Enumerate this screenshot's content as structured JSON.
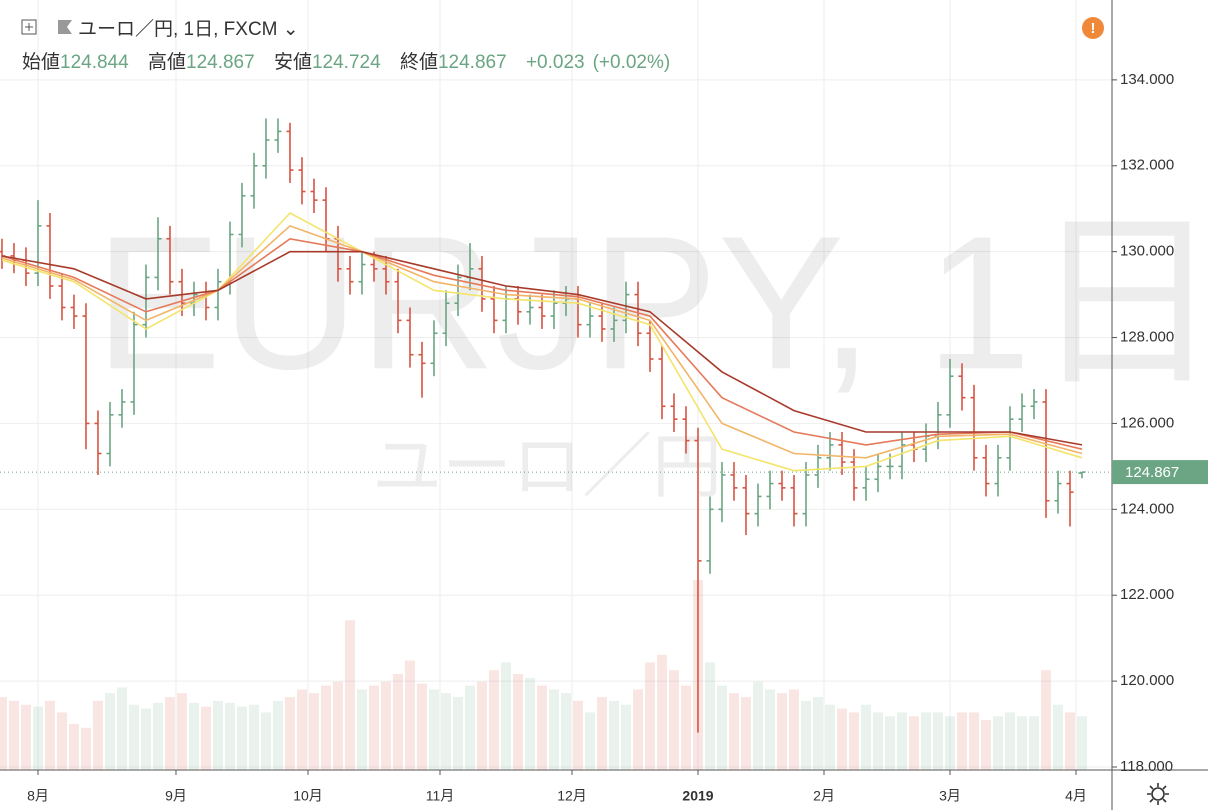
{
  "chart_data": {
    "type": "ohlc",
    "title": "ユーロ／円, 1日, FXCM",
    "labels": {
      "open": "始値",
      "high": "高値",
      "low": "安値",
      "close": "終値"
    },
    "change": "+0.023",
    "change_pct": "(+0.02%)",
    "watermark": "EURJPY, 1日",
    "watermark_sub": "ユーロ／円",
    "xlim": [
      -6.33,
      179
    ],
    "xticks": [
      {
        "value": 0,
        "label": "8月"
      },
      {
        "value": 23,
        "label": "9月"
      },
      {
        "value": 45,
        "label": "10月"
      },
      {
        "value": 67,
        "label": "11月"
      },
      {
        "value": 89,
        "label": "12月"
      },
      {
        "value": 110,
        "label": "2019"
      },
      {
        "value": 131,
        "label": "2月"
      },
      {
        "value": 152,
        "label": "3月"
      },
      {
        "value": 173,
        "label": "4月"
      }
    ],
    "ylim": [
      117.93,
      135.86
    ],
    "yticks": [
      {
        "value": 118,
        "label": "118.000"
      },
      {
        "value": 120,
        "label": "120.000"
      },
      {
        "value": 122,
        "label": "122.000"
      },
      {
        "value": 124,
        "label": "124.000"
      },
      {
        "value": 126,
        "label": "126.000"
      },
      {
        "value": 128,
        "label": "128.000"
      },
      {
        "value": 130,
        "label": "130.000"
      },
      {
        "value": 132,
        "label": "132.000"
      },
      {
        "value": 134,
        "label": "134.000"
      }
    ],
    "grid": true,
    "up_color": "#6ba583",
    "down_color": "#d75442",
    "x": [
      -6,
      -4,
      -2,
      0,
      2,
      4,
      6,
      8,
      10,
      12,
      14,
      16,
      18,
      20,
      22,
      24,
      26,
      28,
      30,
      32,
      34,
      36,
      38,
      40,
      42,
      44,
      46,
      48,
      50,
      52,
      54,
      56,
      58,
      60,
      62,
      64,
      66,
      68,
      70,
      72,
      74,
      76,
      78,
      80,
      82,
      84,
      86,
      88,
      90,
      92,
      94,
      96,
      98,
      100,
      102,
      104,
      106,
      108,
      110,
      112,
      114,
      116,
      118,
      120,
      122,
      124,
      126,
      128,
      130,
      132,
      134,
      136,
      138,
      140,
      142,
      144,
      146,
      148,
      150,
      152,
      154,
      156,
      158,
      160,
      162,
      164,
      166,
      168,
      170,
      172,
      174
    ],
    "open": [
      130.0,
      129.9,
      129.8,
      129.5,
      130.6,
      129.2,
      128.7,
      128.5,
      126.0,
      125.3,
      126.2,
      126.5,
      128.3,
      129.4,
      130.3,
      129.3,
      128.8,
      129.0,
      128.7,
      129.3,
      130.4,
      131.3,
      132.0,
      132.6,
      132.8,
      131.9,
      131.4,
      131.2,
      130.3,
      129.6,
      129.3,
      129.7,
      129.6,
      129.3,
      128.4,
      127.6,
      127.4,
      128.1,
      128.8,
      129.4,
      129.6,
      128.9,
      128.4,
      128.9,
      128.6,
      128.7,
      128.5,
      128.8,
      128.9,
      128.3,
      128.5,
      128.2,
      128.4,
      129.0,
      128.1,
      127.5,
      126.4,
      126.1,
      125.6,
      122.8,
      124.0,
      124.8,
      124.5,
      123.9,
      124.3,
      124.6,
      124.5,
      123.9,
      124.8,
      125.2,
      125.5,
      125.1,
      124.5,
      124.7,
      125.0,
      125.0,
      125.5,
      125.4,
      125.7,
      126.2,
      127.1,
      126.6,
      125.2,
      124.6,
      125.2,
      126.1,
      126.4,
      126.5,
      124.2,
      124.6,
      124.844
    ],
    "high": [
      130.3,
      130.2,
      130.1,
      131.2,
      130.9,
      129.5,
      129.0,
      128.8,
      126.3,
      126.5,
      126.8,
      128.6,
      129.7,
      130.8,
      130.6,
      129.6,
      129.3,
      129.3,
      129.6,
      130.7,
      131.6,
      132.3,
      133.1,
      133.1,
      133.0,
      132.2,
      131.7,
      131.5,
      130.6,
      129.9,
      130.0,
      130.0,
      129.9,
      129.6,
      128.7,
      127.9,
      128.4,
      129.1,
      129.7,
      130.2,
      129.9,
      129.2,
      129.2,
      129.2,
      129.0,
      129.0,
      129.1,
      129.2,
      129.2,
      128.8,
      128.8,
      128.7,
      129.3,
      129.3,
      128.4,
      127.8,
      126.7,
      126.4,
      125.9,
      124.3,
      125.1,
      125.1,
      124.8,
      124.6,
      124.9,
      124.9,
      124.8,
      125.1,
      125.5,
      125.8,
      125.8,
      125.4,
      125.0,
      125.3,
      125.3,
      125.8,
      125.8,
      126.0,
      126.5,
      127.5,
      127.4,
      126.9,
      125.5,
      125.5,
      126.4,
      126.7,
      126.8,
      126.8,
      124.9,
      124.9,
      124.867
    ],
    "low": [
      129.6,
      129.5,
      129.2,
      129.2,
      128.9,
      128.4,
      128.2,
      125.4,
      124.8,
      125.0,
      125.9,
      126.2,
      128.0,
      129.1,
      129.0,
      128.5,
      128.5,
      128.4,
      128.4,
      129.0,
      130.1,
      131.0,
      131.7,
      132.3,
      131.6,
      131.1,
      130.9,
      130.0,
      129.3,
      129.0,
      129.0,
      129.3,
      129.0,
      128.1,
      127.3,
      126.6,
      127.1,
      127.8,
      128.5,
      129.1,
      128.6,
      128.1,
      128.1,
      128.3,
      128.3,
      128.2,
      128.2,
      128.5,
      128.0,
      128.0,
      127.9,
      127.9,
      128.1,
      127.8,
      127.2,
      126.1,
      125.8,
      125.3,
      118.8,
      122.5,
      123.7,
      124.2,
      123.4,
      123.6,
      124.0,
      124.2,
      123.6,
      123.6,
      124.5,
      124.9,
      124.8,
      124.2,
      124.2,
      124.4,
      124.7,
      124.7,
      125.1,
      125.1,
      125.4,
      125.9,
      126.3,
      124.9,
      124.3,
      124.3,
      124.9,
      125.8,
      126.1,
      123.8,
      123.9,
      123.6,
      124.724
    ],
    "close": [
      129.9,
      129.8,
      129.5,
      130.6,
      129.2,
      128.7,
      128.5,
      126.0,
      125.3,
      126.2,
      126.5,
      128.3,
      129.4,
      130.3,
      129.3,
      128.8,
      129.0,
      128.7,
      129.3,
      130.4,
      131.3,
      132.0,
      132.6,
      132.8,
      131.9,
      131.4,
      131.2,
      130.3,
      129.6,
      129.3,
      129.7,
      129.6,
      129.3,
      128.4,
      127.6,
      127.4,
      128.1,
      128.8,
      129.4,
      129.6,
      128.9,
      128.4,
      128.9,
      128.6,
      128.7,
      128.5,
      128.8,
      128.9,
      128.3,
      128.5,
      128.2,
      128.4,
      129.0,
      128.1,
      127.5,
      126.4,
      126.1,
      125.6,
      122.8,
      124.0,
      124.8,
      124.5,
      123.9,
      124.3,
      124.6,
      124.5,
      123.9,
      124.8,
      125.2,
      125.5,
      125.1,
      124.5,
      124.7,
      125.0,
      125.0,
      125.5,
      125.4,
      125.7,
      126.2,
      127.1,
      126.6,
      125.2,
      124.6,
      125.2,
      126.1,
      126.4,
      126.5,
      124.2,
      124.6,
      124.4,
      124.867
    ],
    "volume": [
      38,
      36,
      34,
      33,
      36,
      30,
      24,
      22,
      36,
      40,
      43,
      34,
      32,
      35,
      38,
      40,
      35,
      33,
      36,
      35,
      33,
      34,
      30,
      36,
      38,
      42,
      40,
      44,
      46,
      78,
      42,
      44,
      46,
      50,
      57,
      45,
      42,
      40,
      38,
      44,
      46,
      52,
      56,
      50,
      48,
      44,
      42,
      40,
      36,
      30,
      38,
      36,
      34,
      42,
      56,
      60,
      52,
      44,
      99,
      56,
      44,
      40,
      38,
      46,
      42,
      40,
      42,
      36,
      38,
      34,
      32,
      30,
      34,
      30,
      28,
      30,
      28,
      30,
      30,
      28,
      30,
      30,
      26,
      28,
      30,
      28,
      28,
      52,
      34,
      30,
      28
    ],
    "ribbon_x": [
      -6,
      6,
      18,
      30,
      42,
      54,
      66,
      78,
      90,
      102,
      114,
      126,
      138,
      150,
      162,
      174
    ],
    "ribbon": [
      {
        "color": "#f3e46c",
        "values": [
          129.8,
          129.3,
          128.2,
          129.1,
          130.9,
          130.0,
          129.1,
          128.9,
          128.8,
          128.3,
          125.4,
          124.9,
          125.0,
          125.6,
          125.7,
          125.2
        ]
      },
      {
        "color": "#f2b466",
        "values": [
          129.85,
          129.35,
          128.4,
          129.1,
          130.6,
          130.0,
          129.3,
          129.0,
          128.9,
          128.4,
          126.0,
          125.3,
          125.2,
          125.7,
          125.75,
          125.3
        ]
      },
      {
        "color": "#e57a5a",
        "values": [
          129.9,
          129.4,
          128.6,
          129.1,
          130.3,
          130.0,
          129.45,
          129.1,
          128.95,
          128.5,
          126.6,
          125.8,
          125.5,
          125.75,
          125.8,
          125.4
        ]
      },
      {
        "color": "#a83a2a",
        "values": [
          129.9,
          129.6,
          128.9,
          129.1,
          130.0,
          130.0,
          129.6,
          129.2,
          129.0,
          128.6,
          127.2,
          126.3,
          125.8,
          125.8,
          125.8,
          125.5
        ]
      }
    ]
  }
}
